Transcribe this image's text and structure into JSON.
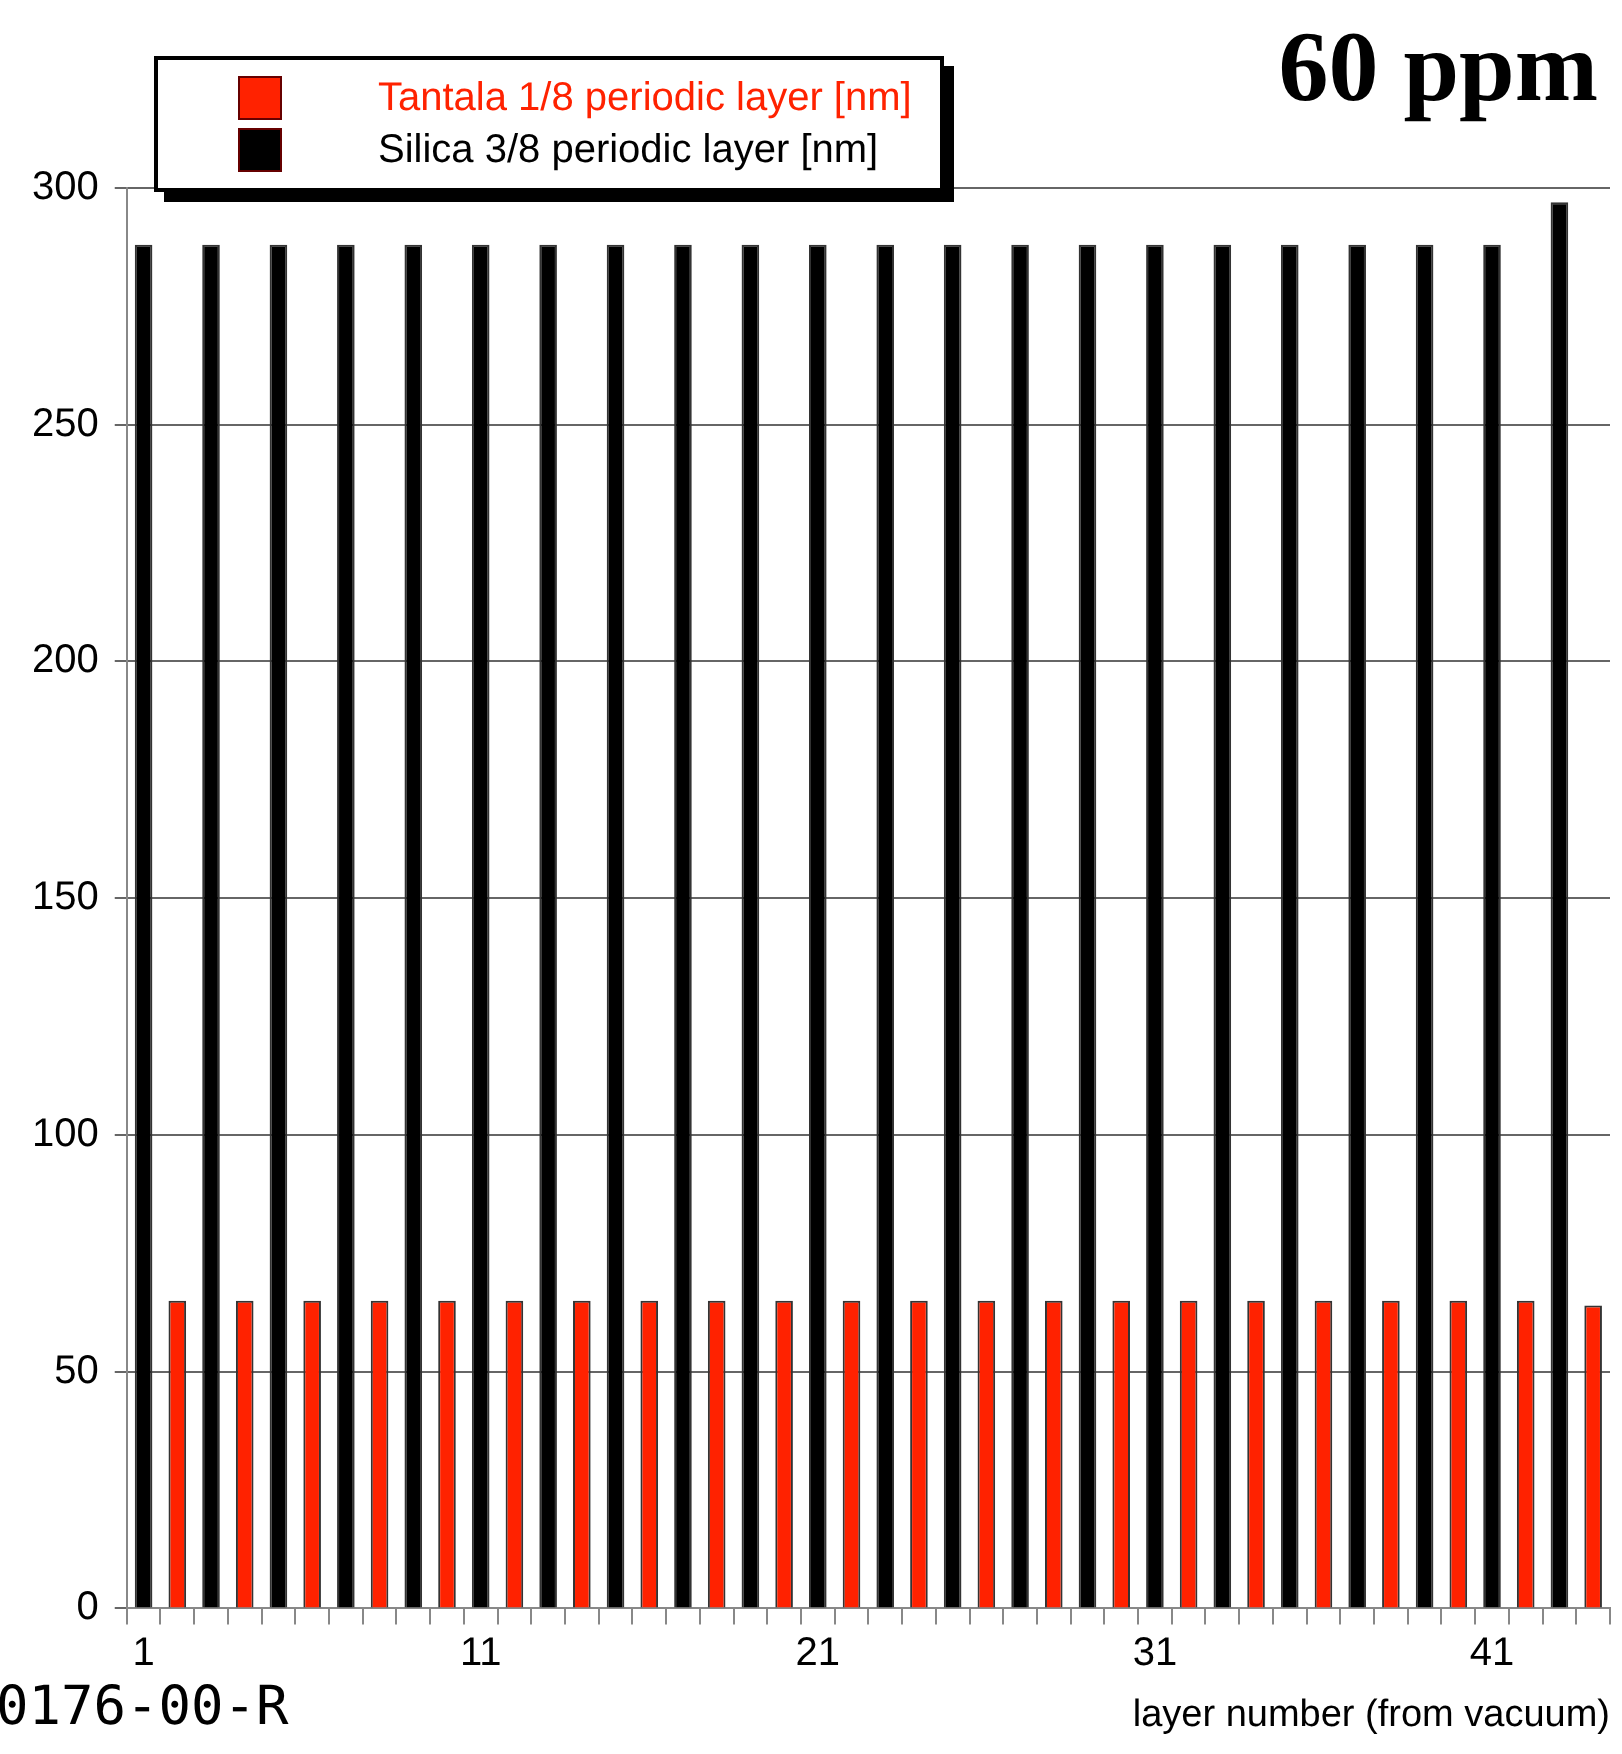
{
  "chart_data": {
    "type": "bar",
    "title": "60 ppm",
    "xlabel": "layer number (from vacuum)",
    "categories": [
      "1",
      null,
      null,
      null,
      null,
      null,
      null,
      null,
      null,
      null,
      "11",
      null,
      null,
      null,
      null,
      null,
      null,
      null,
      null,
      null,
      "21",
      null,
      null,
      null,
      null,
      null,
      null,
      null,
      null,
      null,
      "31",
      null,
      null,
      null,
      null,
      null,
      null,
      null,
      null,
      null,
      "41",
      null,
      null,
      null
    ],
    "series": [
      {
        "name": "Tantala 1/8 periodic layer [nm]",
        "color": "#ff2200",
        "values": [
          null,
          65,
          null,
          65,
          null,
          65,
          null,
          65,
          null,
          65,
          null,
          65,
          null,
          65,
          null,
          65,
          null,
          65,
          null,
          65,
          null,
          65,
          null,
          65,
          null,
          65,
          null,
          65,
          null,
          65,
          null,
          65,
          null,
          65,
          null,
          65,
          null,
          65,
          null,
          65,
          null,
          65,
          null,
          64
        ]
      },
      {
        "name": "Silica 3/8 periodic layer [nm]",
        "color": "#000000",
        "values": [
          288,
          null,
          288,
          null,
          288,
          null,
          288,
          null,
          288,
          null,
          288,
          null,
          288,
          null,
          288,
          null,
          288,
          null,
          288,
          null,
          288,
          null,
          288,
          null,
          288,
          null,
          288,
          null,
          288,
          null,
          288,
          null,
          288,
          null,
          288,
          null,
          288,
          null,
          288,
          null,
          288,
          null,
          297,
          null
        ]
      }
    ],
    "ylim": [
      0,
      300
    ],
    "yticks": [
      0,
      50,
      100,
      150,
      200,
      250,
      300
    ],
    "grid": "y",
    "legend": "top left",
    "annotations": [
      "0176-00-R"
    ]
  }
}
